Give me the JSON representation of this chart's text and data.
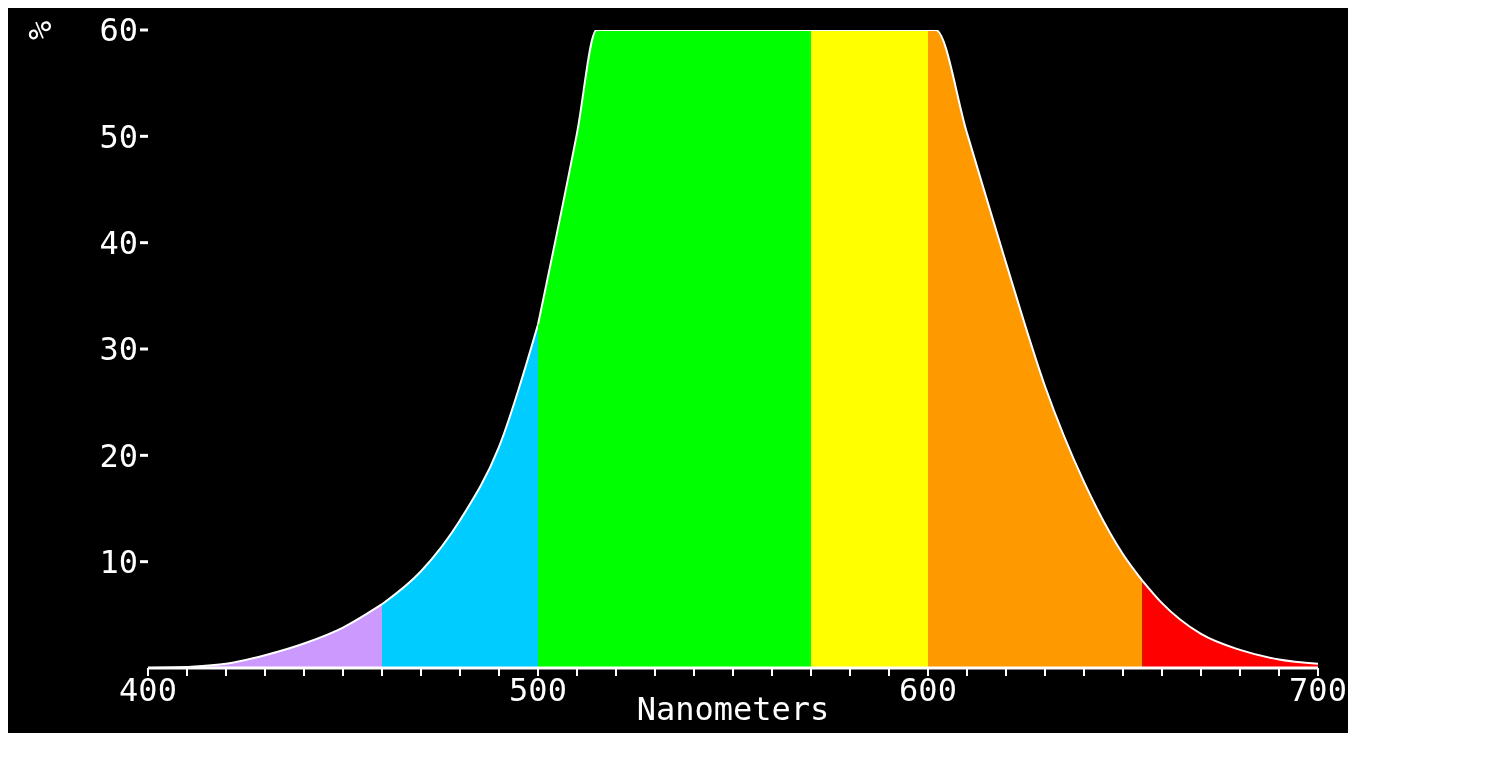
{
  "chart_data": {
    "type": "area",
    "xlabel": "Nanometers",
    "ylabel": "%",
    "series": [
      {
        "color": "#cc99ff",
        "x": [
          400,
          410,
          420,
          430,
          440,
          450,
          460
        ],
        "values": [
          0.0,
          0.1,
          0.4,
          1.2,
          2.3,
          3.8,
          6.0
        ]
      },
      {
        "color": "#00ccff",
        "x": [
          460,
          470,
          480,
          490,
          500
        ],
        "values": [
          6.0,
          9.1,
          13.9,
          20.8,
          32.3
        ]
      },
      {
        "color": "#00ff00",
        "x": [
          500,
          510,
          515,
          570
        ],
        "values": [
          32.3,
          50.3,
          60,
          60
        ]
      },
      {
        "color": "#ffff00",
        "x": [
          570,
          600
        ],
        "values": [
          60,
          60
        ]
      },
      {
        "color": "#ff9900",
        "x": [
          600,
          602,
          610,
          620,
          630,
          640,
          650,
          655
        ],
        "values": [
          60,
          60,
          50.3,
          38.1,
          26.5,
          17.5,
          10.7,
          8.2
        ]
      },
      {
        "color": "#ff0000",
        "x": [
          655,
          660,
          670,
          680,
          690,
          700
        ],
        "values": [
          8.2,
          6.1,
          3.2,
          1.7,
          0.8,
          0.4
        ]
      }
    ],
    "xlim": [
      400,
      700
    ],
    "xticks": [
      400,
      {
        "value": 410,
        "label": null
      },
      {
        "value": 420,
        "label": null
      },
      {
        "value": 430,
        "label": null
      },
      {
        "value": 440,
        "label": null
      },
      {
        "value": 450,
        "label": null
      },
      {
        "value": 460,
        "label": null
      },
      {
        "value": 470,
        "label": null
      },
      {
        "value": 480,
        "label": null
      },
      {
        "value": 490,
        "label": null
      },
      500,
      {
        "value": 510,
        "label": null
      },
      {
        "value": 520,
        "label": null
      },
      {
        "value": 530,
        "label": null
      },
      {
        "value": 540,
        "label": null
      },
      {
        "value": 550,
        "label": null
      },
      {
        "value": 560,
        "label": null
      },
      {
        "value": 570,
        "label": null
      },
      {
        "value": 580,
        "label": null
      },
      {
        "value": 590,
        "label": null
      },
      600,
      {
        "value": 610,
        "label": null
      },
      {
        "value": 620,
        "label": null
      },
      {
        "value": 630,
        "label": null
      },
      {
        "value": 640,
        "label": null
      },
      {
        "value": 650,
        "label": null
      },
      {
        "value": 660,
        "label": null
      },
      {
        "value": 670,
        "label": null
      },
      {
        "value": 680,
        "label": null
      },
      {
        "value": 690,
        "label": null
      },
      700
    ],
    "ylim": [
      0,
      60
    ],
    "yticks": [
      10,
      20,
      30,
      40,
      50,
      60
    ],
    "grid": false,
    "legend": false
  }
}
